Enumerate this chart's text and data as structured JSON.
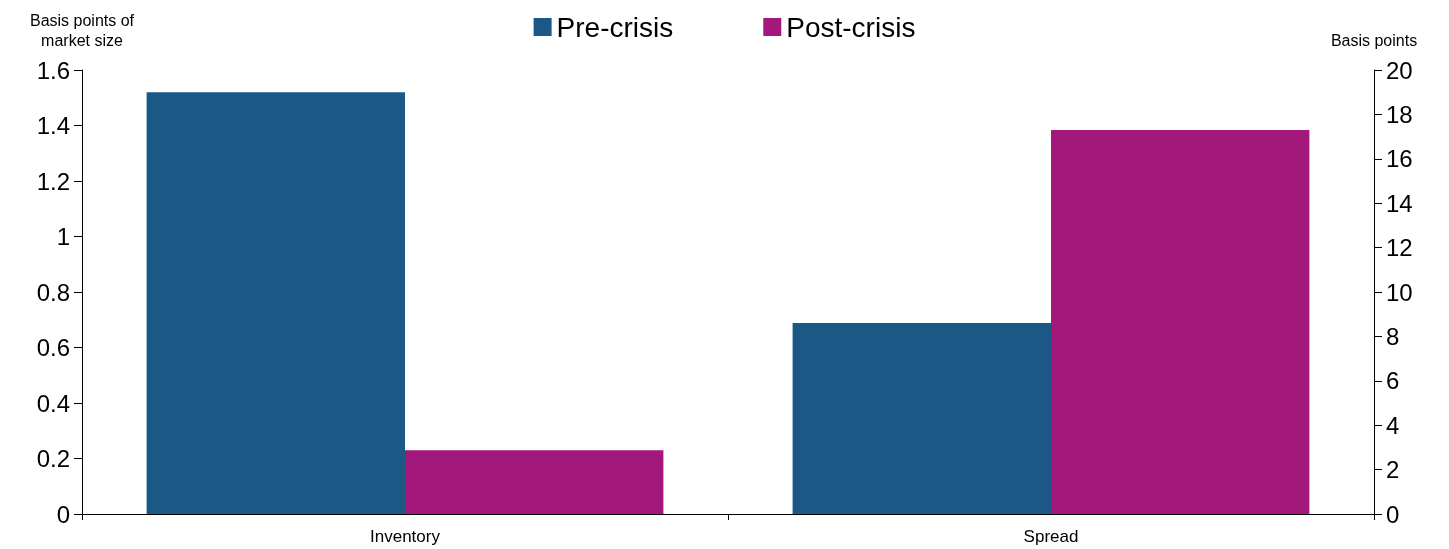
{
  "chart_data": {
    "type": "bar",
    "ylabel": "Basis points of\nmarket size",
    "y2label": "Basis points",
    "categories": [
      "Inventory",
      "Spread"
    ],
    "series": [
      {
        "name": "Pre-crisis",
        "color": "#1b5886",
        "values": [
          1.52,
          null
        ]
      },
      {
        "name": "Post-crisis",
        "color": "#a2197b",
        "values": [
          0.23,
          null
        ]
      },
      {
        "color": "#1b5886",
        "values": [
          null,
          8.6
        ],
        "axis": "y2"
      },
      {
        "color": "#a2197b",
        "values": [
          null,
          17.3
        ],
        "axis": "y2"
      }
    ],
    "ylim": [
      0,
      1.6
    ],
    "yticks": [
      0,
      0.2,
      0.4,
      0.6,
      0.8,
      1,
      1.2,
      1.4,
      1.6
    ],
    "y2lim": [
      0,
      20
    ],
    "y2ticks": [
      0,
      2,
      4,
      6,
      8,
      10,
      12,
      14,
      16,
      18,
      20
    ],
    "grid": false,
    "legend": "top"
  }
}
